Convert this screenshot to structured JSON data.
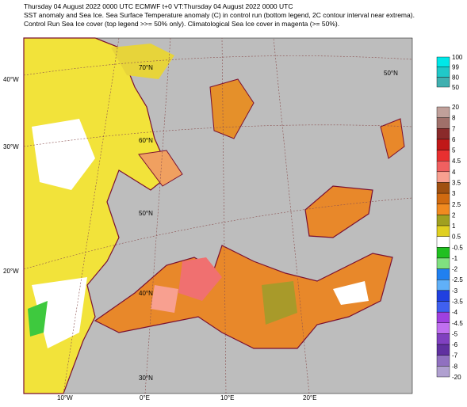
{
  "header": {
    "lines": [
      "Thursday 04 August 2022 0000 UTC  ECMWF t+0  VT:Thursday 04 August 2022 0000 UTC",
      "SST anomaly and Sea Ice. Sea Surface Temperature anomaly (C) in control run (bottom legend, 2C contour interval near extrema).",
      "Control Run Sea Ice cover (top legend >>= 50% only). Climatological Sea Ice cover in magenta (>= 50%)."
    ]
  },
  "map": {
    "lon_labels": [
      "40°W",
      "30°W",
      "20°W"
    ],
    "lat_labels": [
      "70°N",
      "60°N",
      "50°N",
      "40°N",
      "30°N",
      "50°N"
    ],
    "bottom_labels": [
      "10°W",
      "0°E",
      "10°E",
      "20°E"
    ]
  },
  "ice_legend": {
    "labels": [
      "100",
      "99",
      "80",
      "50"
    ]
  },
  "sst_legend": {
    "labels": [
      "20",
      "8",
      "7",
      "6",
      "5",
      "4.5",
      "4",
      "3.5",
      "3",
      "2.5",
      "2",
      "1",
      "0.5",
      "-0.5",
      "-1",
      "-2",
      "-2.5",
      "-3",
      "-3.5",
      "-4",
      "-4.5",
      "-5",
      "-6",
      "-7",
      "-8",
      "-20"
    ]
  }
}
